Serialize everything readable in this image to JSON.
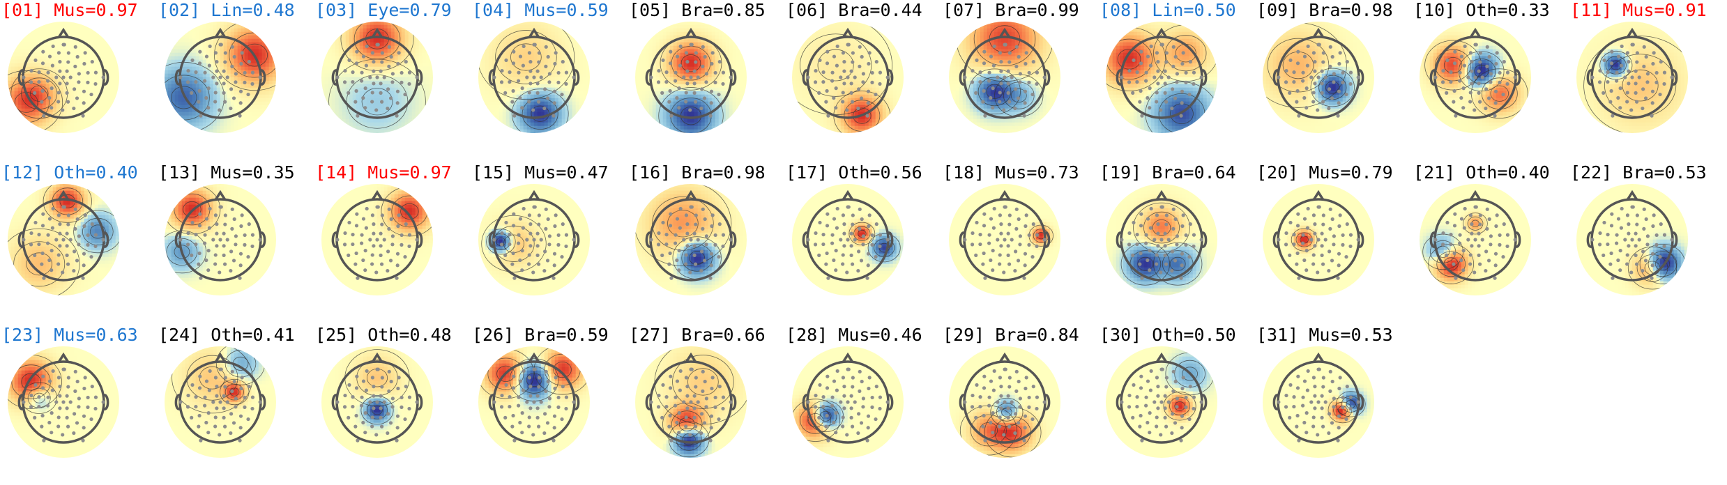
{
  "colors": {
    "rejected": "#ff0000",
    "flagged": "#1f77d0",
    "accepted": "#000000",
    "head_outline": "#555555",
    "sensor": "#8c8c8c",
    "contour": "#333333"
  },
  "colormap": "RdYlBu_r",
  "chart_data": {
    "type": "heatmap",
    "components": [
      {
        "index": "[01]",
        "label": "Mus=0.97",
        "status": "rejected",
        "lobes": [
          [
            -0.92,
            0.62,
            0.45,
            1.0
          ],
          [
            -0.6,
            0.4,
            0.35,
            0.4
          ]
        ]
      },
      {
        "index": "[02]",
        "label": "Lin=0.48",
        "status": "flagged",
        "lobes": [
          [
            0.85,
            -0.55,
            0.5,
            0.9
          ],
          [
            -0.9,
            0.5,
            0.5,
            -0.7
          ]
        ]
      },
      {
        "index": "[03]",
        "label": "Eye=0.79",
        "status": "flagged",
        "lobes": [
          [
            0.0,
            -0.95,
            0.45,
            0.9
          ],
          [
            0.0,
            0.6,
            0.6,
            -0.2
          ]
        ]
      },
      {
        "index": "[04]",
        "label": "Mus=0.59",
        "status": "flagged",
        "lobes": [
          [
            0.15,
            0.9,
            0.35,
            -1.0
          ],
          [
            -0.2,
            -0.5,
            0.6,
            0.3
          ]
        ]
      },
      {
        "index": "[05]",
        "label": "Bra=0.85",
        "status": "accepted",
        "lobes": [
          [
            0.0,
            -0.35,
            0.38,
            0.9
          ],
          [
            0.0,
            0.95,
            0.4,
            -0.9
          ]
        ]
      },
      {
        "index": "[06]",
        "label": "Bra=0.44",
        "status": "accepted",
        "lobes": [
          [
            0.35,
            0.95,
            0.35,
            1.0
          ],
          [
            -0.3,
            -0.3,
            0.7,
            0.15
          ]
        ]
      },
      {
        "index": "[07]",
        "label": "Bra=0.99",
        "status": "accepted",
        "lobes": [
          [
            0.0,
            -0.95,
            0.6,
            0.9
          ],
          [
            -0.25,
            0.35,
            0.32,
            -1.0
          ],
          [
            0.35,
            0.45,
            0.3,
            -0.4
          ]
        ]
      },
      {
        "index": "[08]",
        "label": "Lin=0.50",
        "status": "flagged",
        "lobes": [
          [
            -0.8,
            -0.45,
            0.45,
            0.9
          ],
          [
            0.5,
            0.9,
            0.45,
            -0.8
          ],
          [
            0.6,
            -0.6,
            0.4,
            0.5
          ]
        ]
      },
      {
        "index": "[09]",
        "label": "Bra=0.98",
        "status": "accepted",
        "lobes": [
          [
            0.35,
            0.25,
            0.27,
            -1.0
          ],
          [
            -0.5,
            -0.3,
            0.6,
            0.4
          ]
        ]
      },
      {
        "index": "[10]",
        "label": "Oth=0.33",
        "status": "accepted",
        "lobes": [
          [
            0.15,
            -0.15,
            0.28,
            -0.8
          ],
          [
            -0.55,
            -0.3,
            0.35,
            0.6
          ],
          [
            0.6,
            0.4,
            0.35,
            0.5
          ]
        ]
      },
      {
        "index": "[11]",
        "label": "Mus=0.91",
        "status": "rejected",
        "lobes": [
          [
            -0.4,
            -0.3,
            0.2,
            -1.0
          ],
          [
            0.2,
            0.2,
            0.7,
            0.3
          ]
        ]
      },
      {
        "index": "[12]",
        "label": "Oth=0.40",
        "status": "flagged",
        "lobes": [
          [
            0.1,
            -0.95,
            0.3,
            1.0
          ],
          [
            0.85,
            -0.2,
            0.3,
            -0.6
          ],
          [
            -0.6,
            0.6,
            0.5,
            0.4
          ]
        ]
      },
      {
        "index": "[13]",
        "label": "Mus=0.35",
        "status": "accepted",
        "lobes": [
          [
            -0.7,
            -0.75,
            0.35,
            1.0
          ],
          [
            -0.95,
            0.3,
            0.3,
            -0.5
          ]
        ]
      },
      {
        "index": "[14]",
        "label": "Mus=0.97",
        "status": "rejected",
        "lobes": [
          [
            0.8,
            -0.7,
            0.35,
            1.0
          ]
        ]
      },
      {
        "index": "[15]",
        "label": "Mus=0.47",
        "status": "accepted",
        "lobes": [
          [
            -0.82,
            0.05,
            0.18,
            -1.0
          ],
          [
            -0.5,
            0.1,
            0.4,
            0.3
          ]
        ]
      },
      {
        "index": "[16]",
        "label": "Bra=0.98",
        "status": "accepted",
        "lobes": [
          [
            0.15,
            0.45,
            0.3,
            -1.0
          ],
          [
            -0.2,
            -0.4,
            0.6,
            0.5
          ]
        ]
      },
      {
        "index": "[17]",
        "label": "Oth=0.56",
        "status": "accepted",
        "lobes": [
          [
            0.35,
            -0.15,
            0.16,
            1.0
          ],
          [
            0.9,
            0.2,
            0.2,
            -0.9
          ]
        ]
      },
      {
        "index": "[18]",
        "label": "Mus=0.73",
        "status": "accepted",
        "lobes": [
          [
            0.9,
            -0.1,
            0.15,
            1.0
          ]
        ]
      },
      {
        "index": "[19]",
        "label": "Bra=0.64",
        "status": "accepted",
        "lobes": [
          [
            0.0,
            -0.3,
            0.35,
            0.7
          ],
          [
            -0.4,
            0.6,
            0.3,
            -1.0
          ],
          [
            0.4,
            0.6,
            0.3,
            -0.7
          ]
        ]
      },
      {
        "index": "[20]",
        "label": "Mus=0.79",
        "status": "accepted",
        "lobes": [
          [
            -0.35,
            0.0,
            0.16,
            1.0
          ]
        ]
      },
      {
        "index": "[21]",
        "label": "Oth=0.40",
        "status": "accepted",
        "lobes": [
          [
            -0.6,
            0.6,
            0.28,
            1.0
          ],
          [
            -0.8,
            0.3,
            0.25,
            -0.6
          ],
          [
            0.0,
            -0.4,
            0.15,
            0.5
          ]
        ]
      },
      {
        "index": "[22]",
        "label": "Bra=0.53",
        "status": "accepted",
        "lobes": [
          [
            0.75,
            0.6,
            0.28,
            -1.0
          ],
          [
            0.5,
            0.7,
            0.3,
            0.6
          ]
        ]
      },
      {
        "index": "[23]",
        "label": "Mus=0.63",
        "status": "flagged",
        "lobes": [
          [
            -0.8,
            -0.5,
            0.38,
            1.0
          ],
          [
            -0.6,
            -0.1,
            0.22,
            -0.5
          ]
        ]
      },
      {
        "index": "[24]",
        "label": "Oth=0.41",
        "status": "accepted",
        "lobes": [
          [
            0.35,
            -0.25,
            0.18,
            1.0
          ],
          [
            0.5,
            -0.95,
            0.3,
            -0.5
          ],
          [
            -0.2,
            -0.6,
            0.5,
            0.4
          ]
        ]
      },
      {
        "index": "[25]",
        "label": "Oth=0.48",
        "status": "accepted",
        "lobes": [
          [
            0.0,
            0.2,
            0.2,
            -0.9
          ],
          [
            0.0,
            -0.6,
            0.4,
            0.3
          ]
        ]
      },
      {
        "index": "[26]",
        "label": "Bra=0.59",
        "status": "accepted",
        "lobes": [
          [
            0.0,
            -0.55,
            0.3,
            -1.0
          ],
          [
            0.7,
            -0.8,
            0.35,
            0.8
          ],
          [
            -0.7,
            -0.7,
            0.35,
            0.8
          ]
        ]
      },
      {
        "index": "[27]",
        "label": "Bra=0.66",
        "status": "accepted",
        "lobes": [
          [
            -0.05,
            0.92,
            0.25,
            -0.9
          ],
          [
            -0.1,
            0.55,
            0.3,
            0.7
          ],
          [
            0.3,
            -0.5,
            0.6,
            0.2
          ]
        ]
      },
      {
        "index": "[28]",
        "label": "Mus=0.46",
        "status": "accepted",
        "lobes": [
          [
            -0.55,
            0.35,
            0.22,
            -0.9
          ],
          [
            -0.8,
            0.45,
            0.3,
            0.7
          ]
        ]
      },
      {
        "index": "[29]",
        "label": "Bra=0.84",
        "status": "accepted",
        "lobes": [
          [
            0.05,
            0.25,
            0.2,
            -0.9
          ],
          [
            0.2,
            0.75,
            0.35,
            0.9
          ],
          [
            -0.4,
            0.7,
            0.35,
            0.6
          ]
        ]
      },
      {
        "index": "[30]",
        "label": "Oth=0.50",
        "status": "accepted",
        "lobes": [
          [
            0.45,
            0.1,
            0.2,
            1.0
          ],
          [
            0.7,
            -0.7,
            0.3,
            -0.4
          ]
        ]
      },
      {
        "index": "[31]",
        "label": "Mus=0.53",
        "status": "accepted",
        "lobes": [
          [
            0.6,
            0.2,
            0.18,
            1.0
          ],
          [
            0.8,
            0.05,
            0.18,
            -0.9
          ]
        ]
      }
    ]
  }
}
